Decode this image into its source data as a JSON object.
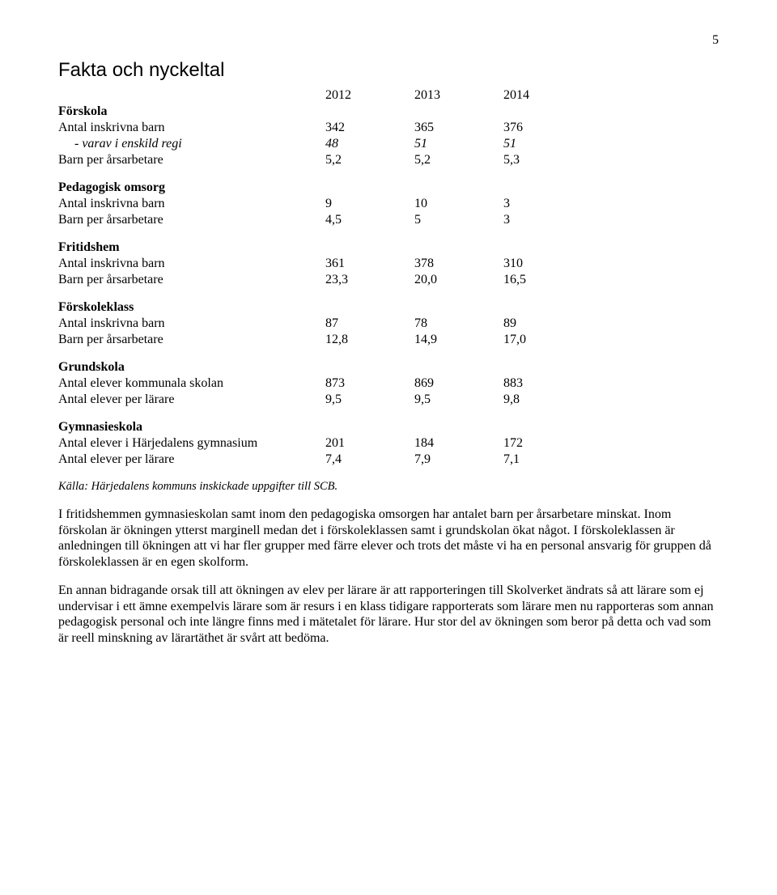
{
  "page_number": "5",
  "title": "Fakta och nyckeltal",
  "years": [
    "2012",
    "2013",
    "2014"
  ],
  "sections": [
    {
      "name": "Förskola",
      "rows": [
        {
          "label": "Antal inskrivna barn",
          "values": [
            "342",
            "365",
            "376"
          ]
        },
        {
          "label": "varav i enskild regi",
          "dash": true,
          "italic": true,
          "values": [
            "48",
            "51",
            "51"
          ]
        },
        {
          "label": "Barn per årsarbetare",
          "values": [
            "5,2",
            "5,2",
            "5,3"
          ]
        }
      ]
    },
    {
      "name": "Pedagogisk omsorg",
      "rows": [
        {
          "label": "Antal inskrivna barn",
          "values": [
            "9",
            "10",
            "3"
          ]
        },
        {
          "label": "Barn per årsarbetare",
          "values": [
            "4,5",
            "5",
            "3"
          ]
        }
      ]
    },
    {
      "name": "Fritidshem",
      "rows": [
        {
          "label": "Antal inskrivna barn",
          "values": [
            "361",
            "378",
            "310"
          ]
        },
        {
          "label": "Barn per årsarbetare",
          "values": [
            "23,3",
            "20,0",
            "16,5"
          ]
        }
      ]
    },
    {
      "name": "Förskoleklass",
      "rows": [
        {
          "label": "Antal inskrivna barn",
          "values": [
            "87",
            "78",
            "89"
          ]
        },
        {
          "label": "Barn per årsarbetare",
          "values": [
            "12,8",
            "14,9",
            "17,0"
          ]
        }
      ]
    },
    {
      "name": "Grundskola",
      "rows": [
        {
          "label": "Antal elever kommunala skolan",
          "values": [
            "873",
            "869",
            "883"
          ]
        },
        {
          "label": "Antal elever per lärare",
          "values": [
            "9,5",
            "9,5",
            "9,8"
          ]
        }
      ]
    },
    {
      "name": "Gymnasieskola",
      "rows": [
        {
          "label": "Antal elever i Härjedalens gymnasium",
          "values": [
            "201",
            "184",
            "172"
          ]
        },
        {
          "label": "Antal elever per lärare",
          "values": [
            "7,4",
            "7,9",
            "7,1"
          ]
        }
      ]
    }
  ],
  "footnote": "Källa: Härjedalens kommuns inskickade uppgifter till SCB.",
  "para1": "I fritidshemmen gymnasieskolan samt inom den pedagogiska omsorgen har antalet barn per årsarbetare minskat. Inom förskolan är ökningen ytterst marginell medan det i förskoleklassen samt i grundskolan ökat något. I förskoleklassen är anledningen till ökningen att vi har fler grupper med färre elever och trots det måste vi ha en personal ansvarig för gruppen då förskoleklassen är en egen skolform.",
  "para2": "En annan bidragande orsak till att ökningen av elev per lärare är att rapporteringen till Skolverket ändrats så att lärare som ej undervisar i ett ämne exempelvis lärare som är resurs i en klass tidigare rapporterats som lärare men nu rapporteras som annan pedagogisk personal och inte längre finns med i mätetalet för lärare. Hur stor del av ökningen som beror på detta och vad som är reell minskning av lärartäthet är svårt att bedöma."
}
